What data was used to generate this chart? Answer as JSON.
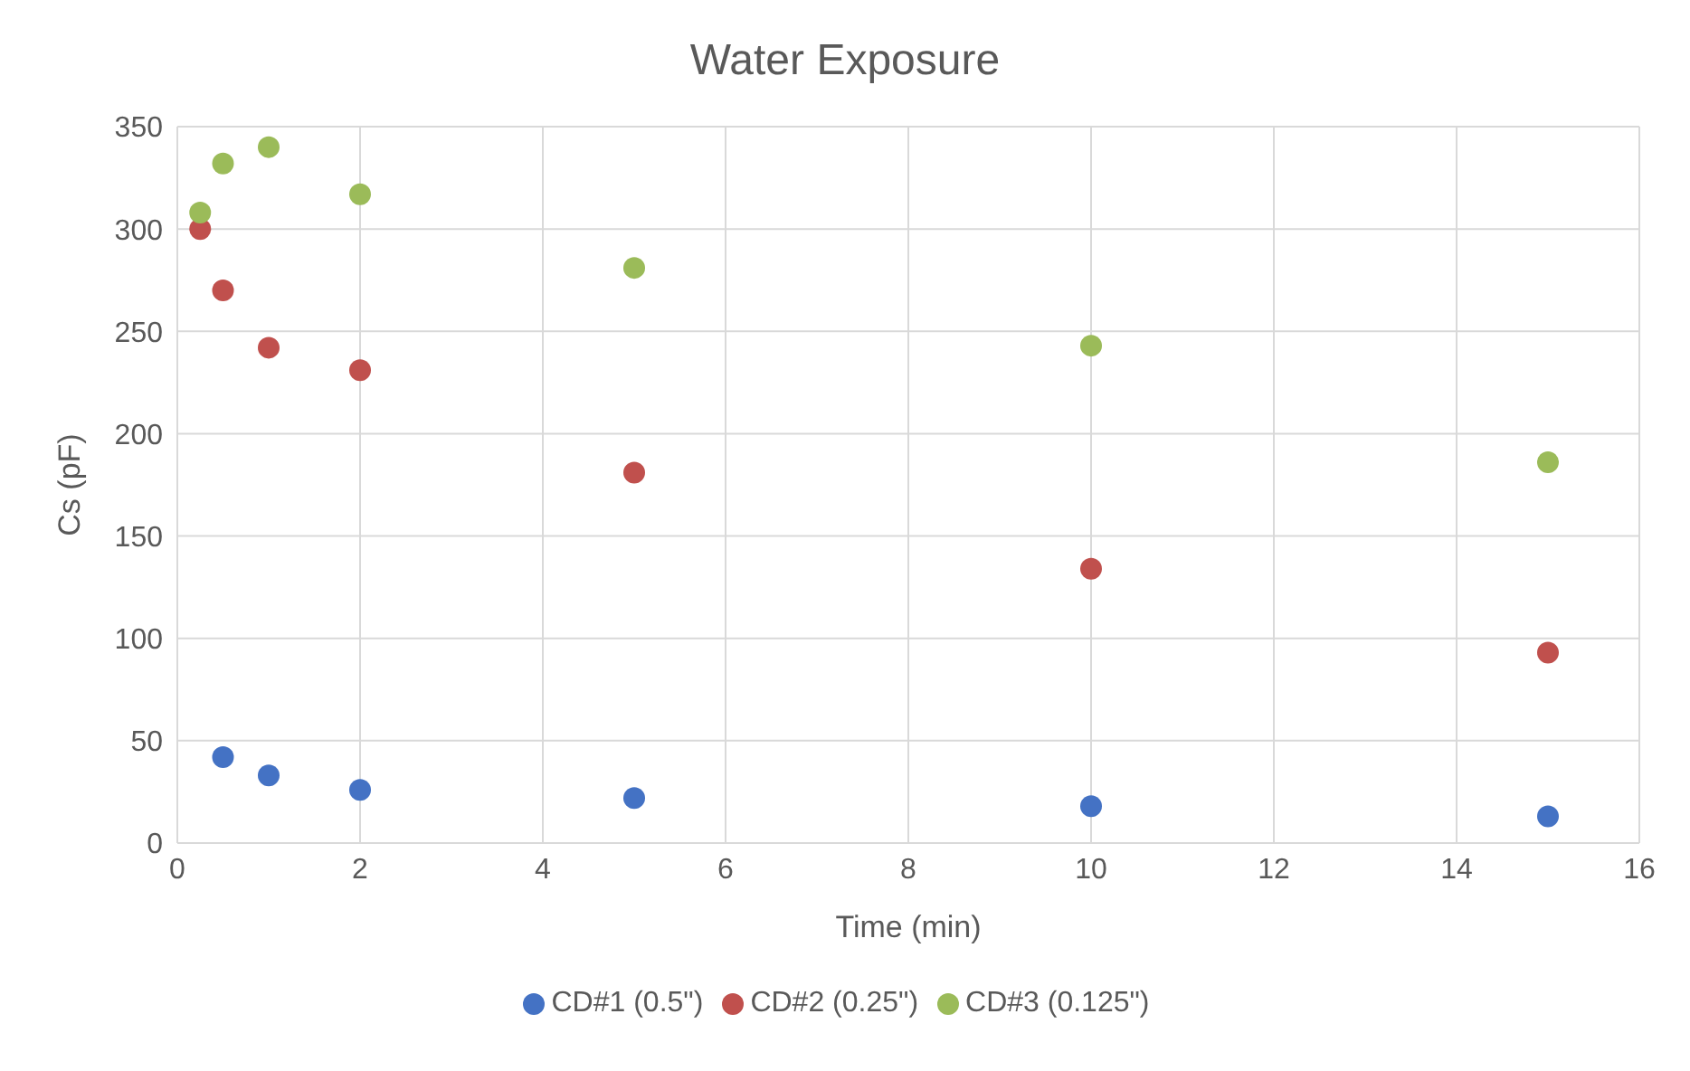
{
  "chart_data": {
    "type": "scatter",
    "title": "Water Exposure",
    "xlabel": "Time (min)",
    "ylabel": "Cs (pF)",
    "series": [
      {
        "name": "CD#1 (0.5\")",
        "color": "#4472c4",
        "x": [
          0.5,
          1,
          2,
          5,
          10,
          15
        ],
        "values": [
          42,
          33,
          26,
          22,
          18,
          13
        ]
      },
      {
        "name": "CD#2 (0.25\")",
        "color": "#c0504d",
        "x": [
          0.25,
          0.5,
          1,
          2,
          5,
          10,
          15
        ],
        "values": [
          300,
          270,
          242,
          231,
          181,
          134,
          93
        ]
      },
      {
        "name": "CD#3 (0.125\")",
        "color": "#9bbb59",
        "x": [
          0.25,
          0.5,
          1,
          2,
          5,
          10,
          15
        ],
        "values": [
          308,
          332,
          340,
          317,
          281,
          243,
          186
        ]
      }
    ],
    "xlim": [
      0,
      16
    ],
    "xticks": [
      0,
      2,
      4,
      6,
      8,
      10,
      12,
      14,
      16
    ],
    "ylim": [
      0,
      350
    ],
    "yticks": [
      0,
      50,
      100,
      150,
      200,
      250,
      300,
      350
    ],
    "grid": true,
    "legend": "bottom",
    "marker": "circle"
  }
}
